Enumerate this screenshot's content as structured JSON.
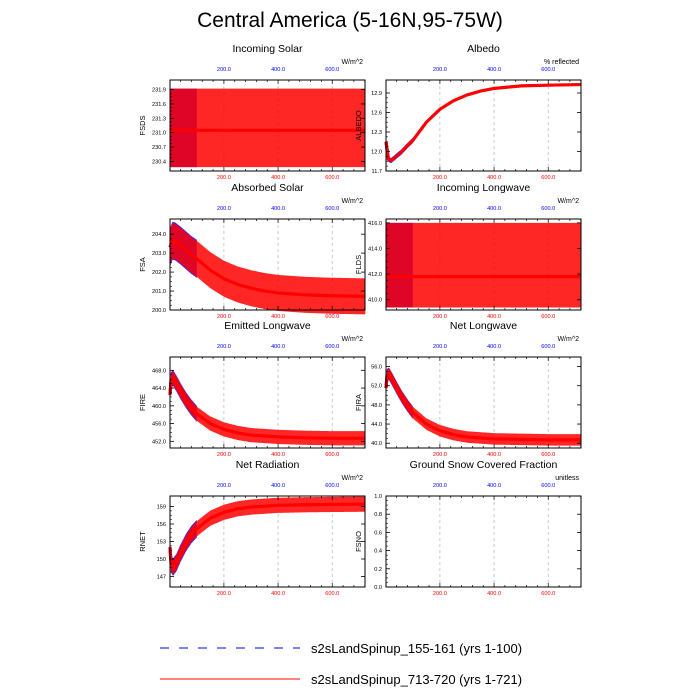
{
  "title": "Central America (5-16N,95-75W)",
  "colors": {
    "run1": "#0000ff",
    "run2": "#ff0000",
    "grid": "#bdbdbd",
    "axis": "#000000"
  },
  "legend": [
    {
      "label": "s2sLandSpinup_155-161 (yrs 1-100)",
      "color": "#0000ff",
      "dash": true
    },
    {
      "label": "s2sLandSpinup_713-720 (yrs 1-721)",
      "color": "#ff0000",
      "dash": false
    }
  ],
  "chart_data": [
    {
      "type": "line",
      "title": "Incoming Solar",
      "units": "W/m^2",
      "ylabel": "FSDS",
      "xlim": [
        1,
        721
      ],
      "ylim": [
        230.2,
        232.1
      ],
      "yticks": [
        "230.4",
        "230.7",
        "231.0",
        "231.3",
        "231.6",
        "231.9"
      ],
      "xticks": [
        "200.0",
        "400.0",
        "600.0"
      ],
      "series": [
        {
          "name": "s2sLandSpinup_155-161 (yrs 1-100)",
          "x_range": [
            1,
            100
          ],
          "annual_mean": [
            [
              1,
              231.05
            ],
            [
              100,
              231.05
            ]
          ],
          "seasonal_min": 230.28,
          "seasonal_max": 231.92
        },
        {
          "name": "s2sLandSpinup_713-720 (yrs 1-721)",
          "x_range": [
            1,
            721
          ],
          "annual_mean": [
            [
              1,
              231.05
            ],
            [
              721,
              231.05
            ]
          ],
          "seasonal_min": 230.28,
          "seasonal_max": 231.92
        }
      ]
    },
    {
      "type": "line",
      "title": "Albedo",
      "units": "% reflected",
      "ylabel": "ALBEDO",
      "xlim": [
        1,
        721
      ],
      "ylim": [
        11.7,
        13.1
      ],
      "yticks": [
        "11.7",
        "12.0",
        "12.3",
        "12.6",
        "12.9"
      ],
      "xticks": [
        "200.0",
        "400.0",
        "600.0"
      ],
      "series": [
        {
          "name": "s2sLandSpinup_155-161 (yrs 1-100)",
          "x_range": [
            1,
            100
          ],
          "annual_mean": [
            [
              1,
              12.15
            ],
            [
              10,
              11.88
            ],
            [
              20,
              11.86
            ],
            [
              40,
              11.93
            ],
            [
              60,
              12.0
            ],
            [
              80,
              12.09
            ],
            [
              100,
              12.17
            ]
          ],
          "seasonal_amp": 0.04
        },
        {
          "name": "s2sLandSpinup_713-720 (yrs 1-721)",
          "x_range": [
            1,
            721
          ],
          "annual_mean": [
            [
              1,
              12.15
            ],
            [
              10,
              11.88
            ],
            [
              20,
              11.86
            ],
            [
              40,
              11.93
            ],
            [
              60,
              12.0
            ],
            [
              80,
              12.09
            ],
            [
              100,
              12.17
            ],
            [
              150,
              12.45
            ],
            [
              200,
              12.65
            ],
            [
              250,
              12.78
            ],
            [
              300,
              12.87
            ],
            [
              350,
              12.93
            ],
            [
              400,
              12.97
            ],
            [
              450,
              12.99
            ],
            [
              500,
              13.01
            ],
            [
              600,
              13.02
            ],
            [
              721,
              13.03
            ]
          ],
          "seasonal_amp": 0.02
        }
      ]
    },
    {
      "type": "line",
      "title": "Absorbed Solar",
      "units": "W/m^2",
      "ylabel": "FSA",
      "xlim": [
        1,
        721
      ],
      "ylim": [
        200.0,
        204.8
      ],
      "yticks": [
        "200.0",
        "201.0",
        "202.0",
        "203.0",
        "204.0"
      ],
      "xticks": [
        "200.0",
        "400.0",
        "600.0"
      ],
      "series": [
        {
          "name": "s2sLandSpinup_155-161 (yrs 1-100)",
          "x_range": [
            1,
            100
          ],
          "annual_mean": [
            [
              1,
              203.3
            ],
            [
              10,
              203.65
            ],
            [
              20,
              203.62
            ],
            [
              40,
              203.4
            ],
            [
              60,
              203.15
            ],
            [
              80,
              202.9
            ],
            [
              100,
              202.7
            ]
          ],
          "seasonal_amp": 1.0
        },
        {
          "name": "s2sLandSpinup_713-720 (yrs 1-721)",
          "x_range": [
            1,
            721
          ],
          "annual_mean": [
            [
              1,
              203.3
            ],
            [
              10,
              203.65
            ],
            [
              20,
              203.62
            ],
            [
              40,
              203.4
            ],
            [
              60,
              203.15
            ],
            [
              80,
              202.9
            ],
            [
              100,
              202.7
            ],
            [
              150,
              202.1
            ],
            [
              200,
              201.65
            ],
            [
              250,
              201.35
            ],
            [
              300,
              201.15
            ],
            [
              350,
              201.0
            ],
            [
              400,
              200.9
            ],
            [
              500,
              200.8
            ],
            [
              600,
              200.75
            ],
            [
              721,
              200.72
            ]
          ],
          "seasonal_amp": 0.95
        }
      ]
    },
    {
      "type": "line",
      "title": "Incoming Longwave",
      "units": "W/m^2",
      "ylabel": "FLDS",
      "xlim": [
        1,
        721
      ],
      "ylim": [
        409.2,
        416.3
      ],
      "yticks": [
        "410.0",
        "412.0",
        "414.0",
        "416.0"
      ],
      "xticks": [
        "200.0",
        "400.0",
        "600.0"
      ],
      "series": [
        {
          "name": "s2sLandSpinup_155-161 (yrs 1-100)",
          "x_range": [
            1,
            100
          ],
          "annual_mean": [
            [
              1,
              411.8
            ],
            [
              100,
              411.8
            ]
          ],
          "seasonal_min": 409.4,
          "seasonal_max": 416.0
        },
        {
          "name": "s2sLandSpinup_713-720 (yrs 1-721)",
          "x_range": [
            1,
            721
          ],
          "annual_mean": [
            [
              1,
              411.8
            ],
            [
              721,
              411.8
            ]
          ],
          "seasonal_min": 409.4,
          "seasonal_max": 416.0
        }
      ]
    },
    {
      "type": "line",
      "title": "Emitted Longwave",
      "units": "W/m^2",
      "ylabel": "FIRE",
      "xlim": [
        1,
        721
      ],
      "ylim": [
        450.5,
        471.0
      ],
      "yticks": [
        "452.0",
        "456.0",
        "460.0",
        "464.0",
        "468.0"
      ],
      "xticks": [
        "200.0",
        "400.0",
        "600.0"
      ],
      "series": [
        {
          "name": "s2sLandSpinup_155-161 (yrs 1-100)",
          "x_range": [
            1,
            100
          ],
          "annual_mean": [
            [
              1,
              462.5
            ],
            [
              5,
              465.8
            ],
            [
              12,
              466.3
            ],
            [
              25,
              465.0
            ],
            [
              40,
              463.3
            ],
            [
              60,
              461.3
            ],
            [
              80,
              459.6
            ],
            [
              100,
              458.2
            ]
          ],
          "seasonal_amp": 1.8
        },
        {
          "name": "s2sLandSpinup_713-720 (yrs 1-721)",
          "x_range": [
            1,
            721
          ],
          "annual_mean": [
            [
              1,
              462.5
            ],
            [
              5,
              465.8
            ],
            [
              12,
              466.3
            ],
            [
              25,
              465.0
            ],
            [
              40,
              463.3
            ],
            [
              60,
              461.3
            ],
            [
              80,
              459.6
            ],
            [
              100,
              458.2
            ],
            [
              150,
              456.0
            ],
            [
              200,
              454.7
            ],
            [
              250,
              453.9
            ],
            [
              300,
              453.4
            ],
            [
              400,
              453.0
            ],
            [
              500,
              452.8
            ],
            [
              600,
              452.7
            ],
            [
              721,
              452.7
            ]
          ],
          "seasonal_amp": 1.6
        }
      ]
    },
    {
      "type": "line",
      "title": "Net Longwave",
      "units": "W/m^2",
      "ylabel": "FIRA",
      "xlim": [
        1,
        721
      ],
      "ylim": [
        39.0,
        58.0
      ],
      "yticks": [
        "40.0",
        "44.0",
        "48.0",
        "52.0",
        "56.0"
      ],
      "xticks": [
        "200.0",
        "400.0",
        "600.0"
      ],
      "series": [
        {
          "name": "s2sLandSpinup_155-161 (yrs 1-100)",
          "x_range": [
            1,
            100
          ],
          "annual_mean": [
            [
              1,
              51.5
            ],
            [
              5,
              54.2
            ],
            [
              12,
              54.5
            ],
            [
              25,
              53.2
            ],
            [
              40,
              51.6
            ],
            [
              60,
              49.6
            ],
            [
              80,
              47.9
            ],
            [
              100,
              46.4
            ]
          ],
          "seasonal_amp": 1.3
        },
        {
          "name": "s2sLandSpinup_713-720 (yrs 1-721)",
          "x_range": [
            1,
            721
          ],
          "annual_mean": [
            [
              1,
              51.5
            ],
            [
              5,
              54.2
            ],
            [
              12,
              54.5
            ],
            [
              25,
              53.2
            ],
            [
              40,
              51.6
            ],
            [
              60,
              49.6
            ],
            [
              80,
              47.9
            ],
            [
              100,
              46.4
            ],
            [
              150,
              44.0
            ],
            [
              200,
              42.6
            ],
            [
              250,
              41.8
            ],
            [
              300,
              41.3
            ],
            [
              400,
              40.9
            ],
            [
              500,
              40.8
            ],
            [
              600,
              40.7
            ],
            [
              721,
              40.7
            ]
          ],
          "seasonal_amp": 1.2
        }
      ]
    },
    {
      "type": "line",
      "title": "Net Radiation",
      "units": "W/m^2",
      "ylabel": "RNET",
      "xlim": [
        1,
        721
      ],
      "ylim": [
        145.2,
        160.8
      ],
      "yticks": [
        "147",
        "150",
        "153",
        "156",
        "159"
      ],
      "xticks": [
        "200.0",
        "400.0",
        "600.0"
      ],
      "series": [
        {
          "name": "s2sLandSpinup_155-161 (yrs 1-100)",
          "x_range": [
            1,
            100
          ],
          "annual_mean": [
            [
              1,
              152.0
            ],
            [
              5,
              149.2
            ],
            [
              12,
              148.6
            ],
            [
              25,
              149.4
            ],
            [
              40,
              151.0
            ],
            [
              60,
              152.8
            ],
            [
              80,
              154.2
            ],
            [
              100,
              155.2
            ]
          ],
          "seasonal_amp": 1.5
        },
        {
          "name": "s2sLandSpinup_713-720 (yrs 1-721)",
          "x_range": [
            1,
            721
          ],
          "annual_mean": [
            [
              1,
              152.0
            ],
            [
              5,
              149.2
            ],
            [
              12,
              148.6
            ],
            [
              25,
              149.4
            ],
            [
              40,
              151.0
            ],
            [
              60,
              152.8
            ],
            [
              80,
              154.2
            ],
            [
              100,
              155.2
            ],
            [
              150,
              157.0
            ],
            [
              200,
              158.0
            ],
            [
              250,
              158.6
            ],
            [
              300,
              158.9
            ],
            [
              400,
              159.2
            ],
            [
              500,
              159.3
            ],
            [
              600,
              159.35
            ],
            [
              721,
              159.4
            ]
          ],
          "seasonal_amp": 1.3
        }
      ]
    },
    {
      "type": "line",
      "title": "Ground Snow Covered Fraction",
      "units": "unitless",
      "ylabel": "FSNO",
      "xlim": [
        1,
        721
      ],
      "ylim": [
        0.0,
        1.0
      ],
      "yticks": [
        "0.0",
        "0.2",
        "0.4",
        "0.6",
        "0.8",
        "1.0"
      ],
      "xticks": [
        "200.0",
        "400.0",
        "600.0"
      ],
      "series": []
    }
  ]
}
